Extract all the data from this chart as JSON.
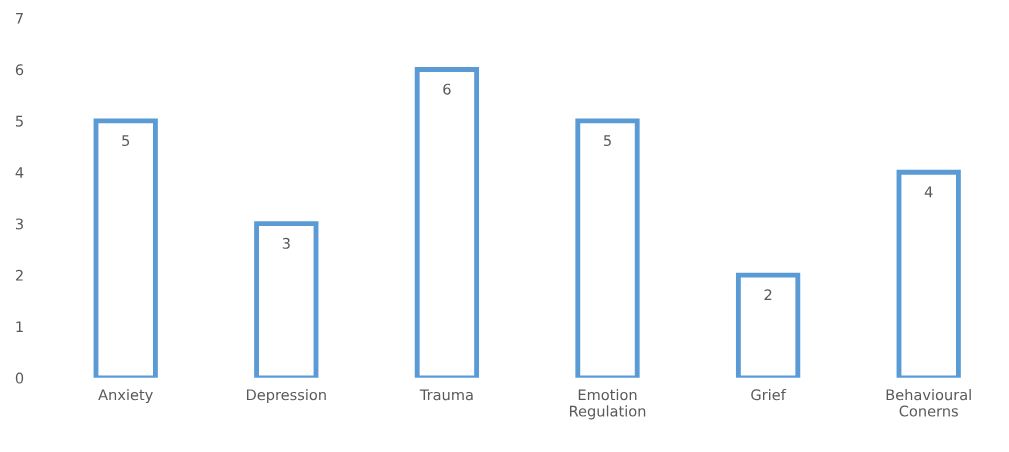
{
  "chart_data": {
    "type": "bar",
    "categories": [
      "Anxiety",
      "Depression",
      "Trauma",
      "Emotion\nRegulation",
      "Grief",
      "Behavioural\nConerns"
    ],
    "values": [
      5,
      3,
      6,
      5,
      2,
      4
    ],
    "color": "#5b9bd5",
    "ylim": [
      0,
      7
    ],
    "yticks": [
      0,
      1,
      2,
      3,
      4,
      5,
      6,
      7
    ],
    "data_labels": true,
    "grid": false
  }
}
